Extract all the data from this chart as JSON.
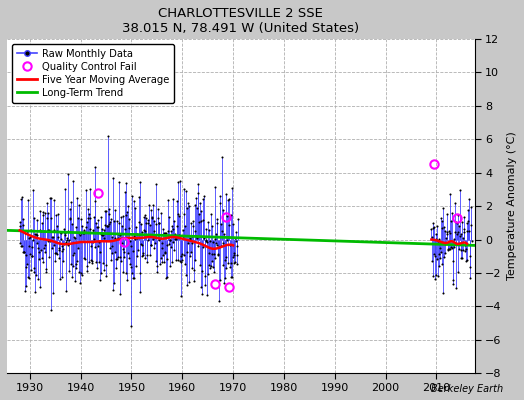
{
  "title": "CHARLOTTESVILLE 2 SSE",
  "subtitle": "38.015 N, 78.491 W (United States)",
  "ylabel": "Temperature Anomaly (°C)",
  "watermark": "Berkeley Earth",
  "xlim": [
    1925.5,
    2017.5
  ],
  "ylim": [
    -8,
    12
  ],
  "yticks": [
    -8,
    -6,
    -4,
    -2,
    0,
    2,
    4,
    6,
    8,
    10,
    12
  ],
  "xticks": [
    1930,
    1940,
    1950,
    1960,
    1970,
    1980,
    1990,
    2000,
    2010
  ],
  "figure_bg_color": "#c8c8c8",
  "plot_bg_color": "#ffffff",
  "grid_color": "#b0b0b0",
  "raw_line_color": "#4444ff",
  "raw_marker_color": "black",
  "moving_avg_color": "red",
  "trend_color": "#00bb00",
  "qc_fail_color": "magenta",
  "period1_start": 1928,
  "period1_end": 1970,
  "period2_start": 2009,
  "period2_end": 2016,
  "seed": 42,
  "moving_avg_knots_x": [
    1928,
    1930,
    1932,
    1934,
    1936,
    1938,
    1940,
    1942,
    1944,
    1946,
    1948,
    1950,
    1952,
    1954,
    1956,
    1958,
    1960,
    1962,
    1964,
    1966,
    1968,
    1970
  ],
  "moving_avg_knots_y": [
    0.55,
    0.25,
    0.05,
    -0.05,
    -0.25,
    -0.25,
    -0.15,
    -0.15,
    -0.1,
    -0.1,
    0.05,
    0.1,
    0.1,
    0.15,
    0.05,
    0.15,
    0.05,
    -0.1,
    -0.3,
    -0.55,
    -0.4,
    -0.35
  ],
  "moving_avg_knots2_x": [
    2009,
    2010,
    2011,
    2012,
    2013,
    2014,
    2015,
    2016
  ],
  "moving_avg_knots2_y": [
    0.0,
    -0.05,
    -0.15,
    -0.2,
    -0.1,
    -0.25,
    -0.2,
    -0.25
  ],
  "trend_x": [
    1925.5,
    2017.5
  ],
  "trend_y": [
    0.55,
    -0.35
  ],
  "qc_fail_points": [
    [
      1943.5,
      2.8
    ],
    [
      1948.5,
      -0.15
    ],
    [
      1966.5,
      -2.65
    ],
    [
      1968.5,
      1.35
    ],
    [
      1969.2,
      -2.85
    ],
    [
      2009.5,
      4.5
    ],
    [
      2014.0,
      1.3
    ]
  ]
}
